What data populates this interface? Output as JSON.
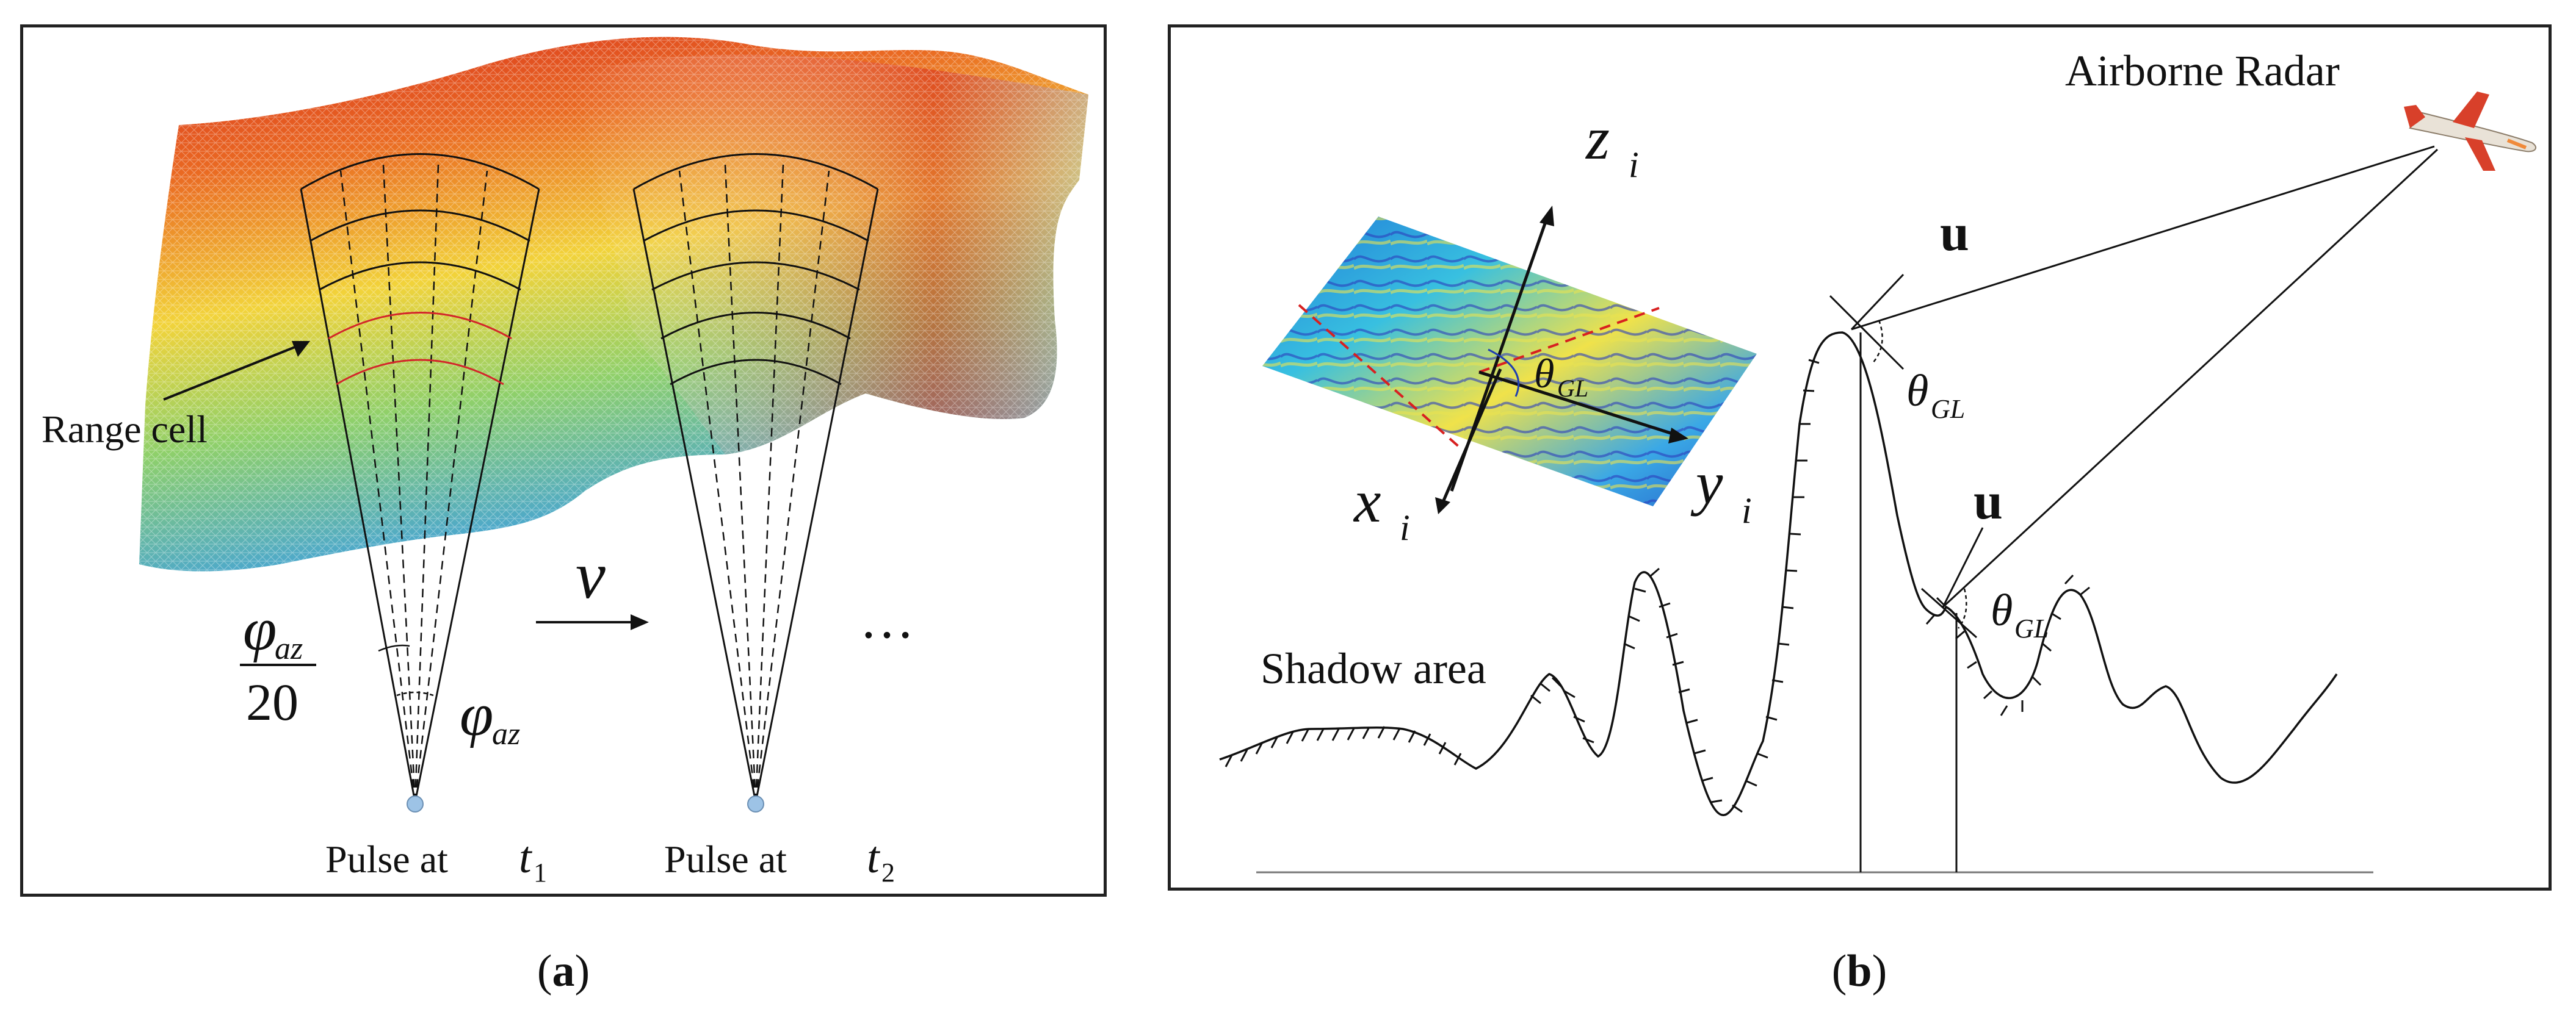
{
  "panel_a": {
    "range_cell_label": "Range cell",
    "velocity_symbol": "v",
    "ellipsis": "…",
    "phi_frac_num": "φ",
    "phi_frac_num_sub": "az",
    "phi_frac_den": "20",
    "phi_label": "φ",
    "phi_label_sub": "az",
    "pulse1_text": "Pulse at",
    "pulse1_var": "t",
    "pulse1_sub": "1",
    "pulse2_text": "Pulse at",
    "pulse2_var": "t",
    "pulse2_sub": "2",
    "caption_open": "(",
    "caption_letter": "a",
    "caption_close": ")"
  },
  "panel_b": {
    "airborne_label": "Airborne Radar",
    "shadow_label": "Shadow area",
    "u_label_1": "u",
    "u_label_2": "u",
    "theta_1": "θ",
    "theta_1_sub": "GL",
    "theta_2": "θ",
    "theta_2_sub": "GL",
    "theta_inset": "θ",
    "theta_inset_sub": "GL",
    "z_axis": "z",
    "z_sub": "i",
    "x_axis": "x",
    "x_sub": "i",
    "y_axis": "y",
    "y_sub": "i",
    "caption_open": "(",
    "caption_letter": "b",
    "caption_close": ")"
  },
  "colors": {
    "terrain_high": "#d62a1e",
    "terrain_mid": "#f2d33a",
    "terrain_low": "#3fa0e0",
    "range_cell_line": "#d3262a",
    "inset_dash": "#d82020",
    "pulse_dot": "#9dc3e6"
  }
}
